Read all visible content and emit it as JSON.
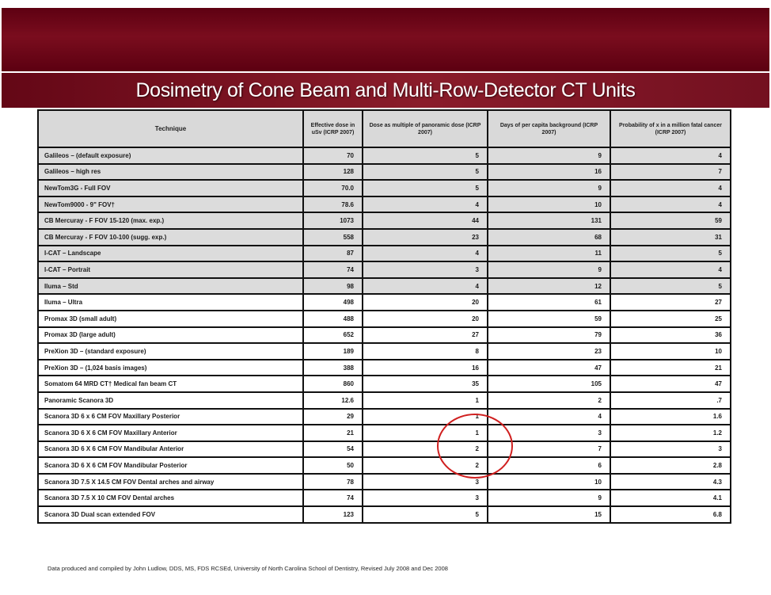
{
  "slide": {
    "title": "Dosimetry of Cone Beam and Multi-Row-Detector CT Units",
    "footnote": "Data produced and compiled by John Ludlow, DDS, MS, FDS RCSEd, University of North Carolina School of Dentistry, Revised July 2008 and Dec 2008"
  },
  "colors": {
    "banner": "#6e0a1a",
    "title_text": "#ffffff",
    "shaded_row": "#dcdcdc",
    "highlight_circle": "#d02020"
  },
  "table": {
    "headers": [
      "Technique",
      "Effective dose in uSv (ICRP 2007)",
      "Dose as multiple of panoramic dose (ICRP 2007)",
      "Days of per capita background (ICRP 2007)",
      "Probability of x in a million fatal cancer (ICRP 2007)"
    ],
    "rows": [
      {
        "technique": "Galileos – (default exposure)",
        "dose": "70",
        "multiple": "5",
        "days": "9",
        "probability": "4"
      },
      {
        "technique": "Galileos – high res",
        "dose": "128",
        "multiple": "5",
        "days": "16",
        "probability": "7"
      },
      {
        "technique": "NewTom3G - Full FOV",
        "dose": "70.0",
        "multiple": "5",
        "days": "9",
        "probability": "4"
      },
      {
        "technique": "NewTom9000 - 9\" FOV†",
        "dose": "78.6",
        "multiple": "4",
        "days": "10",
        "probability": "4"
      },
      {
        "technique": "CB Mercuray - F FOV 15-120 (max. exp.)",
        "dose": "1073",
        "multiple": "44",
        "days": "131",
        "probability": "59"
      },
      {
        "technique": "CB Mercuray - F FOV 10-100 (sugg. exp.)",
        "dose": "558",
        "multiple": "23",
        "days": "68",
        "probability": "31"
      },
      {
        "technique": "I-CAT – Landscape",
        "dose": "87",
        "multiple": "4",
        "days": "11",
        "probability": "5"
      },
      {
        "technique": "I-CAT – Portrait",
        "dose": "74",
        "multiple": "3",
        "days": "9",
        "probability": "4"
      },
      {
        "technique": "Iluma – Std",
        "dose": "98",
        "multiple": "4",
        "days": "12",
        "probability": "5"
      },
      {
        "technique": "Iluma – Ultra",
        "dose": "498",
        "multiple": "20",
        "days": "61",
        "probability": "27"
      },
      {
        "technique": "Promax 3D (small adult)",
        "dose": "488",
        "multiple": "20",
        "days": "59",
        "probability": "25"
      },
      {
        "technique": "Promax 3D (large adult)",
        "dose": "652",
        "multiple": "27",
        "days": "79",
        "probability": "36"
      },
      {
        "technique": "PreXion 3D – (standard exposure)",
        "dose": "189",
        "multiple": "8",
        "days": "23",
        "probability": "10"
      },
      {
        "technique": "PreXion 3D – (1,024 basis images)",
        "dose": "388",
        "multiple": "16",
        "days": "47",
        "probability": "21"
      },
      {
        "technique": "Somatom 64 MRD CT† Medical fan beam CT",
        "dose": "860",
        "multiple": "35",
        "days": "105",
        "probability": "47"
      },
      {
        "technique": "Panoramic Scanora 3D",
        "dose": "12.6",
        "multiple": "1",
        "days": "2",
        "probability": ".7"
      },
      {
        "technique": "Scanora 3D 6 x 6 CM FOV Maxillary Posterior",
        "dose": "29",
        "multiple": "1",
        "days": "4",
        "probability": "1.6"
      },
      {
        "technique": "Scanora 3D 6 X 6 CM FOV Maxillary Anterior",
        "dose": "21",
        "multiple": "1",
        "days": "3",
        "probability": "1.2"
      },
      {
        "technique": "Scanora 3D 6 X 6 CM FOV Mandibular Anterior",
        "dose": "54",
        "multiple": "2",
        "days": "7",
        "probability": "3"
      },
      {
        "technique": "Scanora 3D 6 X 6 CM FOV Mandibular Posterior",
        "dose": "50",
        "multiple": "2",
        "days": "6",
        "probability": "2.8"
      },
      {
        "technique": "Scanora 3D 7.5 X 14.5 CM FOV Dental arches and airway",
        "dose": "78",
        "multiple": "3",
        "days": "10",
        "probability": "4.3"
      },
      {
        "technique": "Scanora 3D 7.5 X 10 CM FOV Dental arches",
        "dose": "74",
        "multiple": "3",
        "days": "9",
        "probability": "4.1"
      },
      {
        "technique": "Scanora 3D Dual scan extended FOV",
        "dose": "123",
        "multiple": "5",
        "days": "15",
        "probability": "6.8"
      }
    ]
  }
}
